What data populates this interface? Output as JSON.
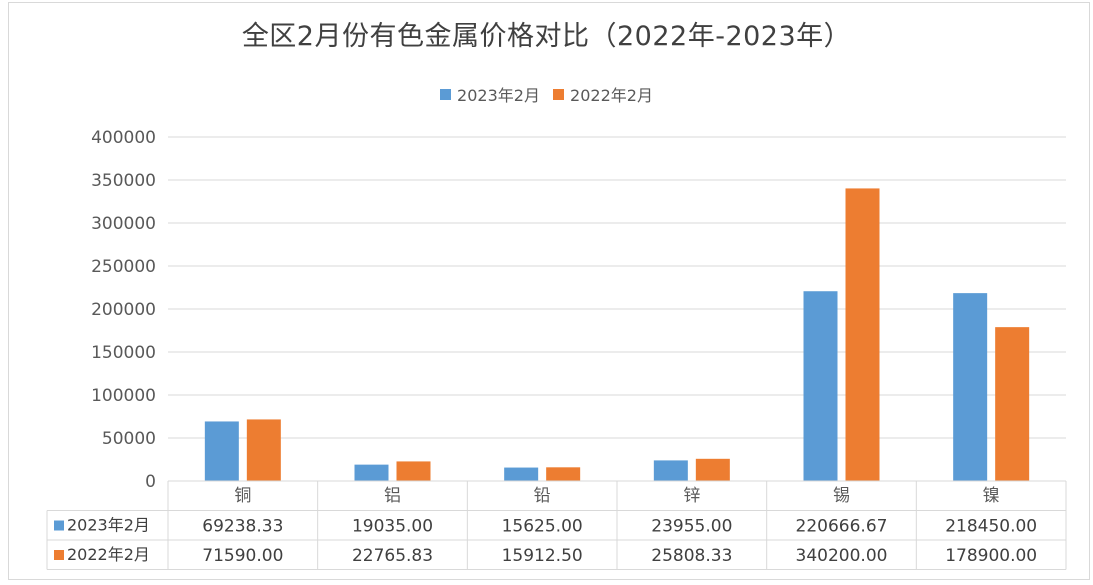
{
  "chart_data": {
    "type": "bar",
    "title": "全区2月份有色金属价格对比（2022年-2023年）",
    "categories": [
      "铜",
      "铝",
      "铅",
      "锌",
      "锡",
      "镍"
    ],
    "series": [
      {
        "name": "2023年2月",
        "color": "#5b9bd5",
        "values": [
          69238.33,
          19035.0,
          15625.0,
          23955.0,
          220666.67,
          218450.0
        ],
        "labels": [
          "69238.33",
          "19035.00",
          "15625.00",
          "23955.00",
          "220666.67",
          "218450.00"
        ]
      },
      {
        "name": "2022年2月",
        "color": "#ed7d31",
        "values": [
          71590.0,
          22765.83,
          15912.5,
          25808.33,
          340200.0,
          178900.0
        ],
        "labels": [
          "71590.00",
          "22765.83",
          "15912.50",
          "25808.33",
          "340200.00",
          "178900.00"
        ]
      }
    ],
    "ylim": [
      0,
      400000
    ],
    "yticks": [
      0,
      50000,
      100000,
      150000,
      200000,
      250000,
      300000,
      350000,
      400000
    ],
    "grid": true,
    "legend_position": "top",
    "data_table": true
  }
}
